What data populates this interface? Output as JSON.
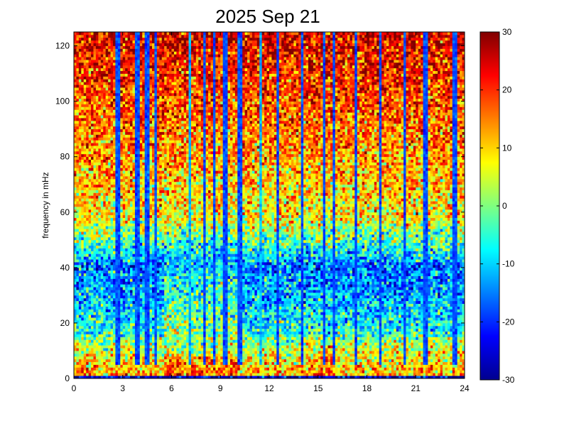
{
  "chart_data": {
    "type": "heatmap",
    "title": "2025 Sep 21",
    "xlabel": "",
    "ylabel": "frequency in mHz",
    "xlim": [
      0,
      24
    ],
    "ylim": [
      0,
      125
    ],
    "x_ticks": [
      0,
      3,
      6,
      9,
      12,
      15,
      18,
      21,
      24
    ],
    "y_ticks": [
      0,
      20,
      40,
      60,
      80,
      100,
      120
    ],
    "grid": false,
    "colormap": "jet",
    "colorbar": {
      "range": [
        -30,
        30
      ],
      "ticks": [
        30,
        20,
        10,
        0,
        -10,
        -20,
        -30
      ]
    },
    "grid_size": {
      "time_bins": 160,
      "freq_bins": 125
    },
    "features": {
      "low_frequency_band_mhz": [
        0,
        15
      ],
      "low_frequency_band_level": 12,
      "mid_band_mhz": [
        15,
        42
      ],
      "mid_band_level": -5,
      "enhanced_window_hours": [
        5.5,
        10
      ],
      "background_level": 20,
      "vertical_streaks_hours": [
        2.7,
        3.9,
        4.5,
        5.0,
        7.1,
        8.0,
        8.6,
        9.3,
        10.2,
        11.5,
        12.5,
        14.0,
        15.4,
        16.0,
        17.3,
        18.8,
        20.3,
        21.6,
        23.4
      ],
      "strongest_streaks_hours": [
        7.1,
        11.5
      ]
    }
  }
}
